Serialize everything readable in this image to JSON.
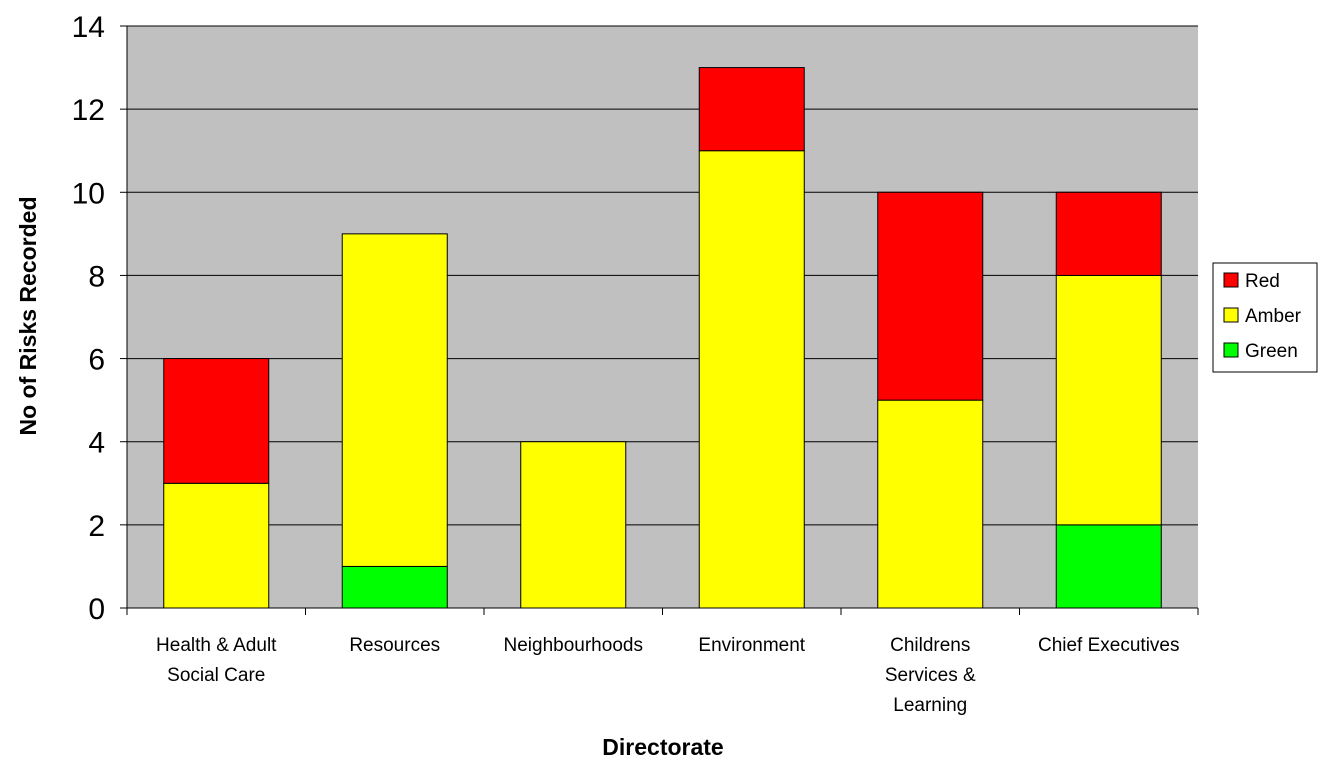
{
  "chart_data": {
    "type": "bar",
    "stacked": true,
    "categories": [
      [
        "Health & Adult",
        "Social Care"
      ],
      [
        "Resources"
      ],
      [
        "Neighbourhoods"
      ],
      [
        "Environment"
      ],
      [
        "Childrens",
        "Services &",
        "Learning"
      ],
      [
        "Chief Executives"
      ]
    ],
    "series": [
      {
        "name": "Green",
        "color": "#00ff00",
        "values": [
          0,
          1,
          0,
          0,
          0,
          2
        ]
      },
      {
        "name": "Amber",
        "color": "#ffff00",
        "values": [
          3,
          8,
          4,
          11,
          5,
          6
        ]
      },
      {
        "name": "Red",
        "color": "#ff0000",
        "values": [
          3,
          0,
          0,
          2,
          5,
          2
        ]
      }
    ],
    "legend_order": [
      "Red",
      "Amber",
      "Green"
    ],
    "legend_position": "right",
    "xlabel": "Directorate",
    "ylabel": "No of Risks Recorded",
    "ylim": [
      0,
      14
    ],
    "yticks": [
      0,
      2,
      4,
      6,
      8,
      10,
      12,
      14
    ],
    "grid": true,
    "plot_background": "#c0c0c0"
  }
}
